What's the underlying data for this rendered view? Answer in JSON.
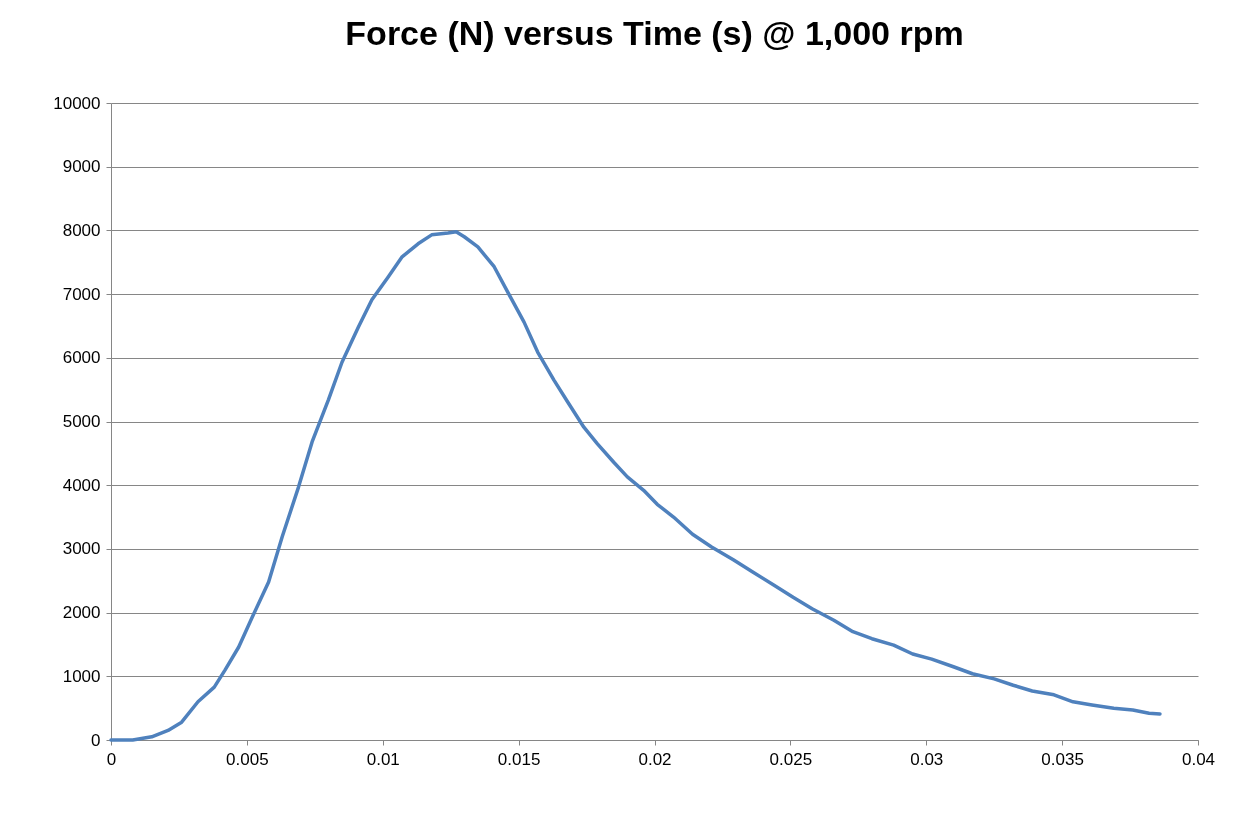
{
  "chart_data": {
    "type": "line",
    "title": "Force (N) versus Time (s) @ 1,000 rpm",
    "x": [
      0,
      0.0008,
      0.0015,
      0.0021,
      0.0026,
      0.0032,
      0.0038,
      0.0042,
      0.0047,
      0.0052,
      0.0058,
      0.0063,
      0.0069,
      0.0074,
      0.008,
      0.0085,
      0.0091,
      0.0096,
      0.0102,
      0.0107,
      0.0113,
      0.0118,
      0.0124,
      0.0127,
      0.013,
      0.0135,
      0.0141,
      0.0146,
      0.0152,
      0.0157,
      0.0163,
      0.0168,
      0.0174,
      0.0179,
      0.0185,
      0.019,
      0.0196,
      0.0201,
      0.0207,
      0.0214,
      0.0221,
      0.0229,
      0.0236,
      0.0244,
      0.0251,
      0.0258,
      0.0266,
      0.0273,
      0.028,
      0.0288,
      0.0295,
      0.0302,
      0.031,
      0.0317,
      0.0325,
      0.0332,
      0.0339,
      0.0347,
      0.0354,
      0.0361,
      0.0369,
      0.0376,
      0.0382,
      0.0386
    ],
    "series": [
      {
        "color": "#4f81bd",
        "values": [
          0,
          0,
          50,
          150,
          280,
          600,
          830,
          1100,
          1460,
          1930,
          2480,
          3190,
          3970,
          4680,
          5340,
          5930,
          6480,
          6910,
          7270,
          7580,
          7790,
          7930,
          7960,
          7980,
          7900,
          7740,
          7430,
          7030,
          6560,
          6090,
          5650,
          5310,
          4910,
          4650,
          4360,
          4130,
          3920,
          3700,
          3500,
          3230,
          3030,
          2830,
          2640,
          2430,
          2240,
          2060,
          1880,
          1700,
          1590,
          1490,
          1350,
          1270,
          1150,
          1040,
          960,
          860,
          770,
          710,
          600,
          550,
          500,
          470,
          420,
          410
        ]
      }
    ],
    "xlim": [
      0,
      0.04
    ],
    "xticks": [
      0,
      0.005,
      0.01,
      0.015,
      0.02,
      0.025,
      0.03,
      0.035,
      0.04
    ],
    "ylim": [
      0,
      10000
    ],
    "yticks": [
      0,
      1000,
      2000,
      3000,
      4000,
      5000,
      6000,
      7000,
      8000,
      9000,
      10000
    ],
    "grid": "y",
    "marker": "none",
    "line_style": "solid"
  }
}
